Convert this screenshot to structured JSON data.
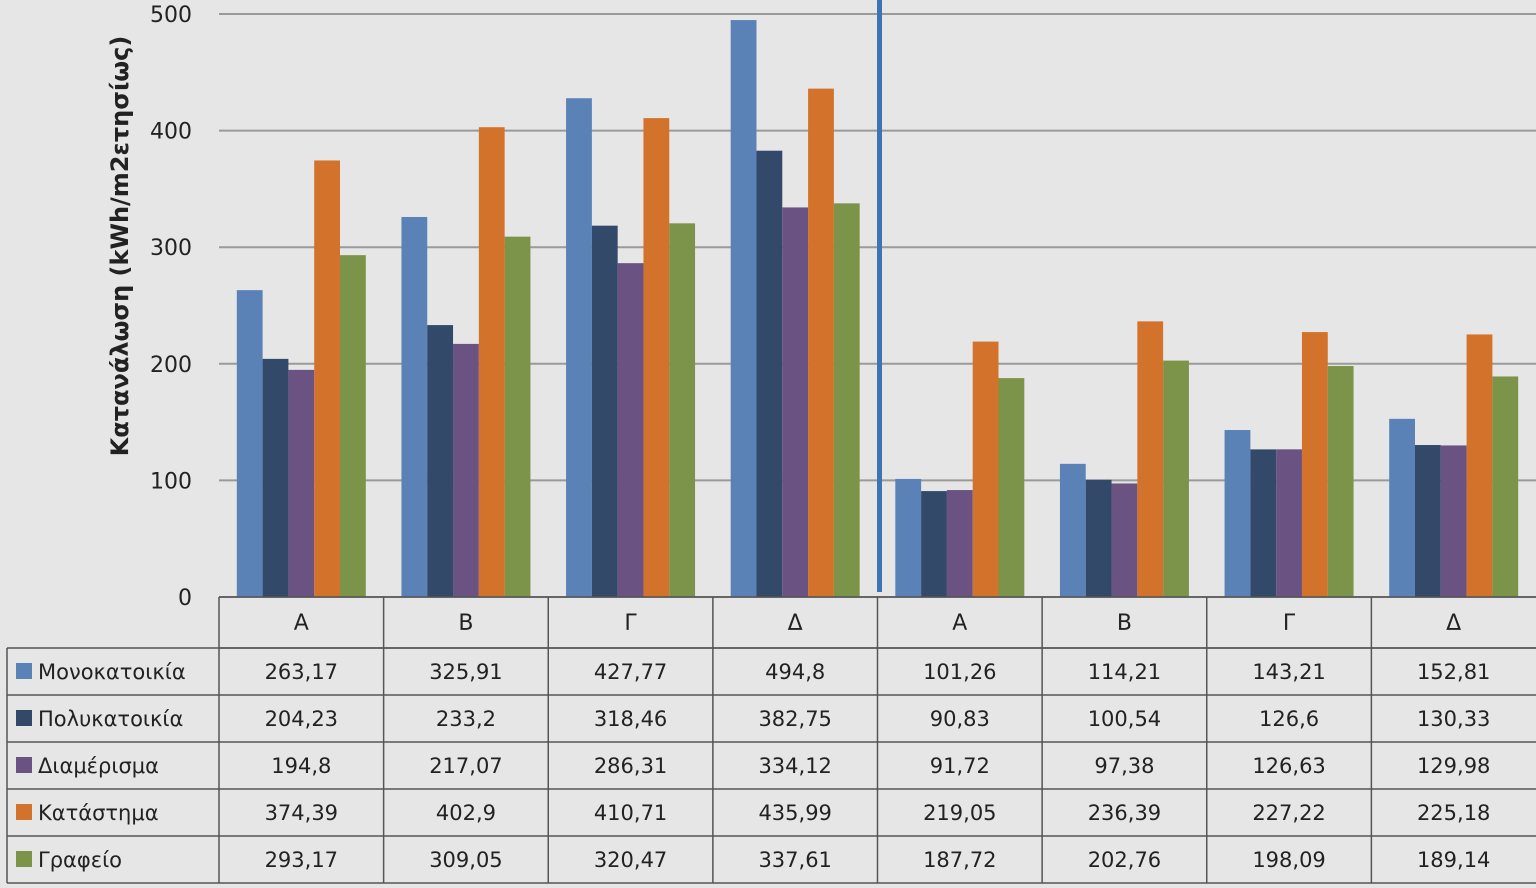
{
  "chart_data": {
    "type": "bar",
    "ylabel": "Κατανάλωση (kWh/m2ετησίως)",
    "ylim": [
      0,
      500
    ],
    "yticks": [
      0,
      100,
      200,
      300,
      400,
      500
    ],
    "grid": true,
    "legend_placement": "left of data table",
    "categories": [
      "Α",
      "Β",
      "Γ",
      "Δ",
      "Α",
      "Β",
      "Γ",
      "Δ"
    ],
    "series": [
      {
        "name": "Μονοκατοικία",
        "color": "#5b82b6",
        "values": [
          263.17,
          325.91,
          427.77,
          494.8,
          101.26,
          114.21,
          143.21,
          152.81
        ],
        "labels": [
          "263,17",
          "325,91",
          "427,77",
          "494,8",
          "101,26",
          "114,21",
          "143,21",
          "152,81"
        ]
      },
      {
        "name": "Πολυκατοικία",
        "color": "#33496a",
        "values": [
          204.23,
          233.2,
          318.46,
          382.75,
          90.83,
          100.54,
          126.6,
          130.33
        ],
        "labels": [
          "204,23",
          "233,2",
          "318,46",
          "382,75",
          "90,83",
          "100,54",
          "126,6",
          "130,33"
        ]
      },
      {
        "name": "Διαμέρισμα",
        "color": "#6a5282",
        "values": [
          194.8,
          217.07,
          286.31,
          334.12,
          91.72,
          97.38,
          126.63,
          129.98
        ],
        "labels": [
          "194,8",
          "217,07",
          "286,31",
          "334,12",
          "91,72",
          "97,38",
          "126,63",
          "129,98"
        ]
      },
      {
        "name": "Κατάστημα",
        "color": "#d3722a",
        "values": [
          374.39,
          402.9,
          410.71,
          435.99,
          219.05,
          236.39,
          227.22,
          225.18
        ],
        "labels": [
          "374,39",
          "402,9",
          "410,71",
          "435,99",
          "219,05",
          "236,39",
          "227,22",
          "225,18"
        ]
      },
      {
        "name": "Γραφείο",
        "color": "#7c9449",
        "values": [
          293.17,
          309.05,
          320.47,
          337.61,
          187.72,
          202.76,
          198.09,
          189.14
        ],
        "labels": [
          "293,17",
          "309,05",
          "320,47",
          "337,61",
          "187,72",
          "202,76",
          "198,09",
          "189,14"
        ]
      }
    ],
    "separator_color": "#3f74b4"
  }
}
